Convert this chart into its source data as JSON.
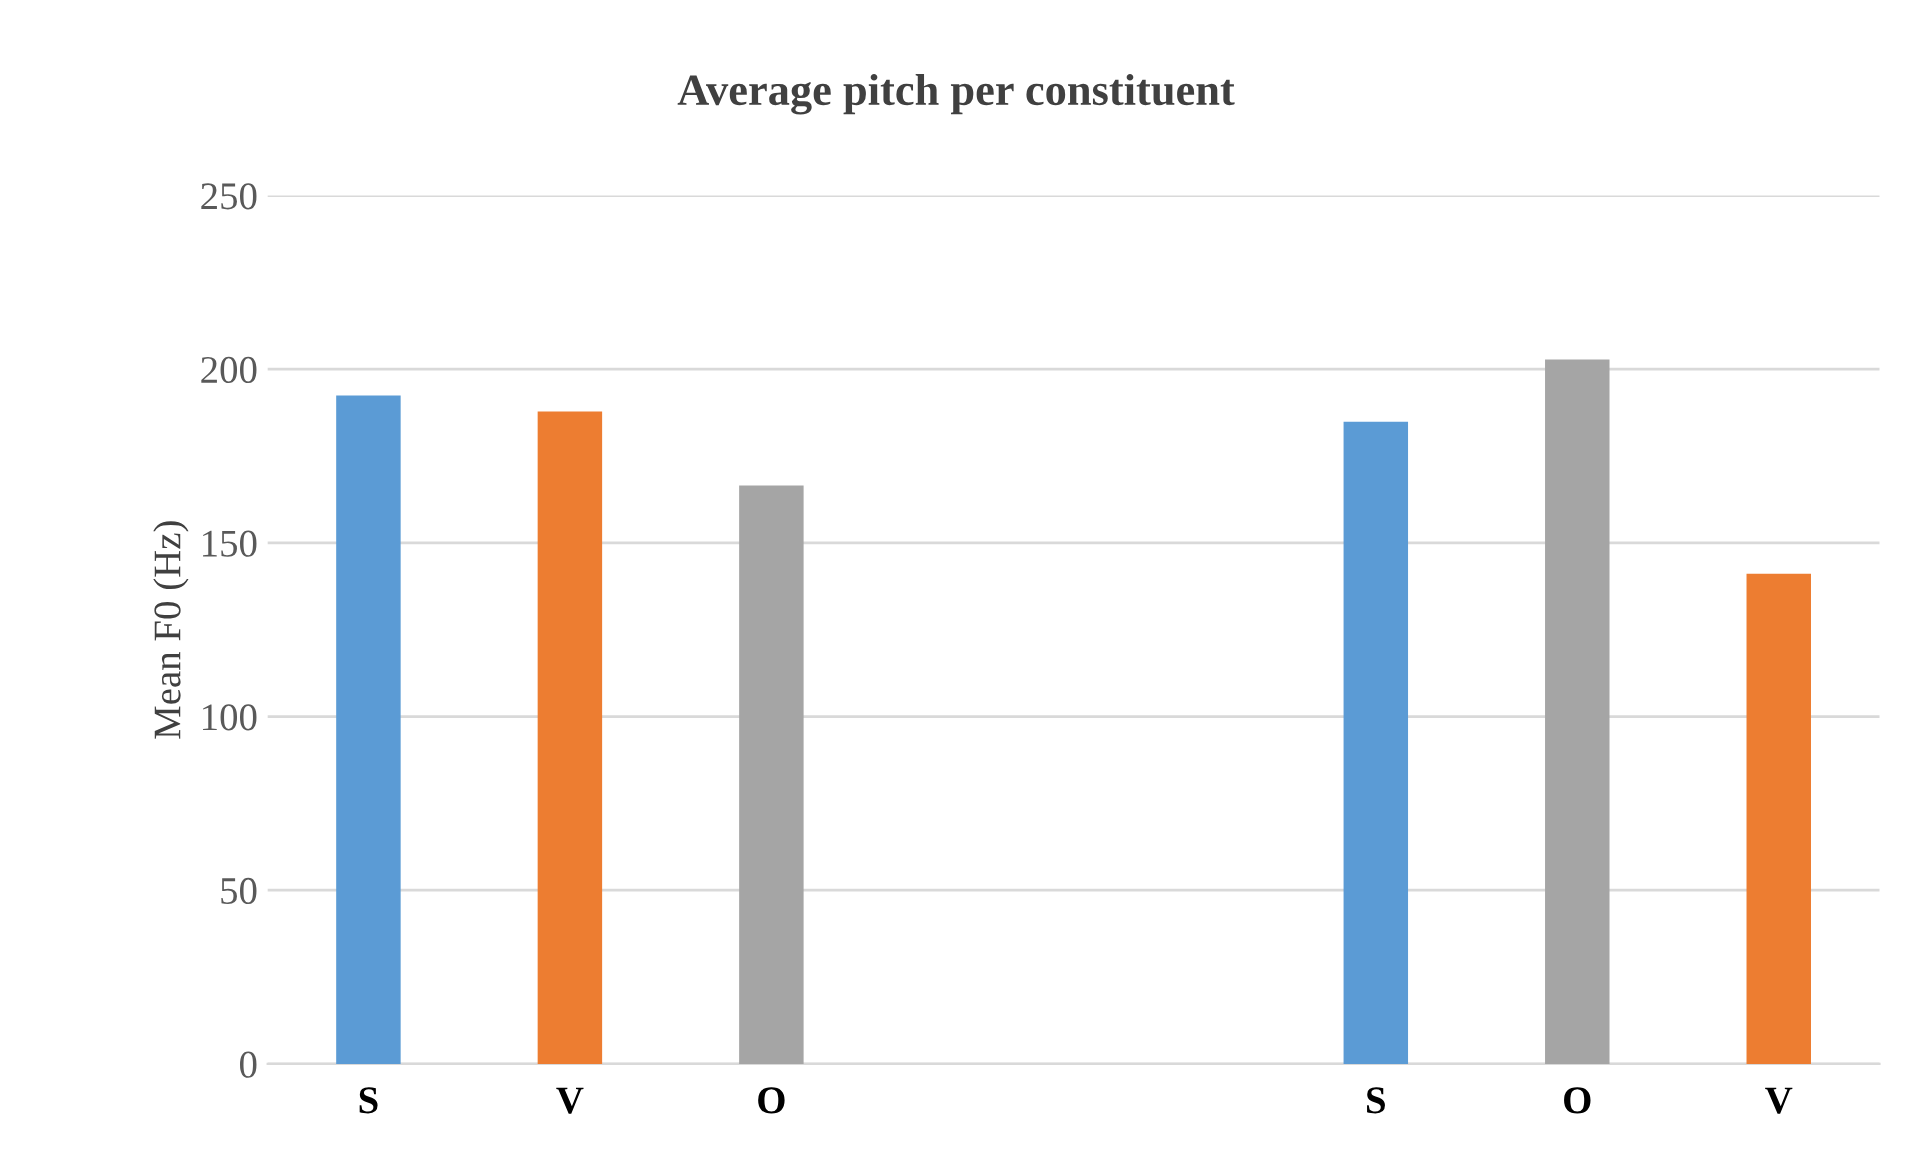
{
  "chart_data": {
    "type": "bar",
    "title": "Average pitch per constituent",
    "ylabel": "Mean F0 (Hz)",
    "categories": [
      "S",
      "V",
      "O",
      null,
      null,
      "S",
      "O",
      "V"
    ],
    "values": [
      192.4,
      187.8,
      166.5,
      null,
      null,
      184.9,
      202.8,
      141.1
    ],
    "colors": [
      "#5b9bd5",
      "#ed7d31",
      "#a5a5a5",
      null,
      null,
      "#5b9bd5",
      "#a5a5a5",
      "#ed7d31"
    ],
    "ylim": [
      0,
      250
    ],
    "yticks": [
      0,
      50,
      100,
      150,
      200,
      250
    ],
    "grid": "y",
    "legend": false
  }
}
